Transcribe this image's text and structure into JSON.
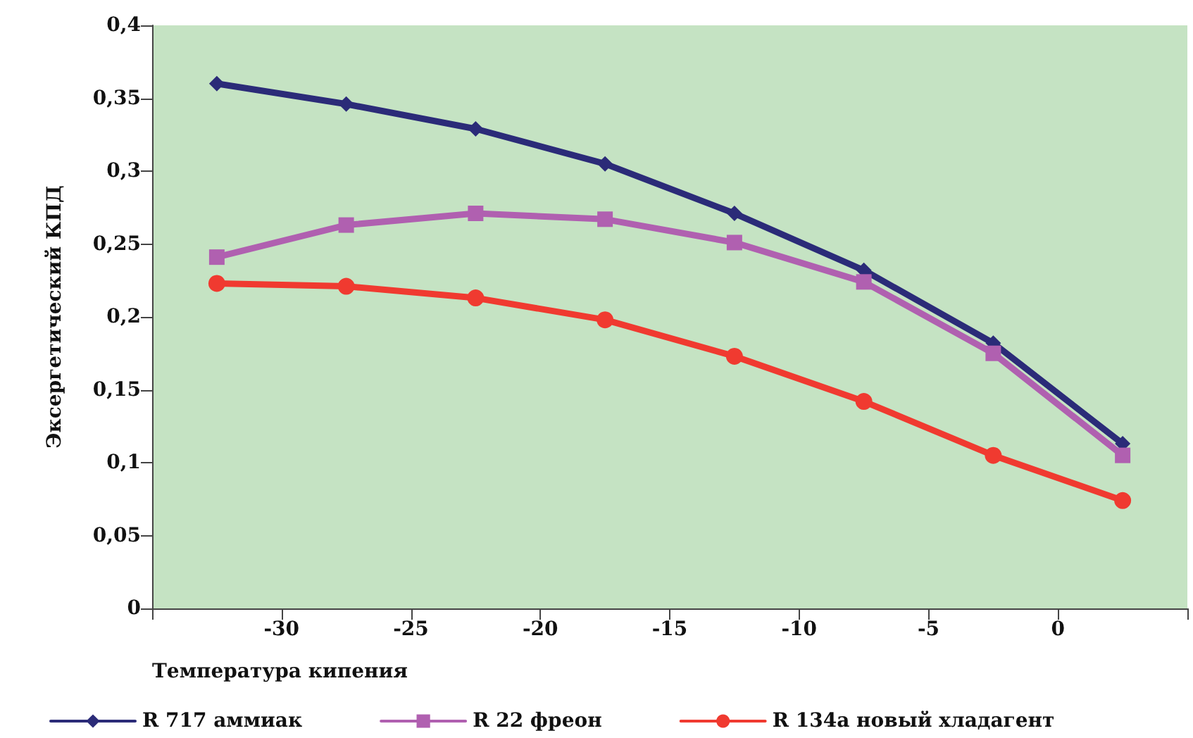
{
  "chart_data": {
    "type": "line",
    "xlabel": "Температура кипения",
    "ylabel": "Эксергетический КПД",
    "xlim": [
      -35,
      5
    ],
    "xticks": [
      {
        "value": -35,
        "label": null
      },
      -30,
      -25,
      -20,
      -15,
      -10,
      -5,
      0,
      {
        "value": 5,
        "label": null
      }
    ],
    "ylim": [
      0,
      0.4
    ],
    "yticks": [
      {
        "value": 0,
        "label": "0"
      },
      {
        "value": 0.05,
        "label": "0,05"
      },
      {
        "value": 0.1,
        "label": "0,1"
      },
      {
        "value": 0.15,
        "label": "0,15"
      },
      {
        "value": 0.2,
        "label": "0,2"
      },
      {
        "value": 0.25,
        "label": "0,25"
      },
      {
        "value": 0.3,
        "label": "0,3"
      },
      {
        "value": 0.35,
        "label": "0,35"
      },
      {
        "value": 0.4,
        "label": "0,4"
      }
    ],
    "x": [
      -32.5,
      -27.5,
      -22.5,
      -17.5,
      -12.5,
      -7.5,
      -2.5,
      2.5
    ],
    "grid": false,
    "legend": "bottom left",
    "series": [
      {
        "name": "R 717 аммиак",
        "color": "#2b2b78",
        "marker": "diamond",
        "values": [
          0.36,
          0.346,
          0.329,
          0.305,
          0.271,
          0.232,
          0.182,
          0.113
        ]
      },
      {
        "name": "R 22 фреон",
        "color": "#b060b0",
        "marker": "square",
        "values": [
          0.241,
          0.263,
          0.271,
          0.267,
          0.251,
          0.224,
          0.175,
          0.105
        ]
      },
      {
        "name": "R 134a новый хладагент",
        "color": "#f03a30",
        "marker": "circle",
        "values": [
          0.223,
          0.221,
          0.213,
          0.198,
          0.173,
          0.142,
          0.105,
          0.074
        ]
      }
    ]
  }
}
